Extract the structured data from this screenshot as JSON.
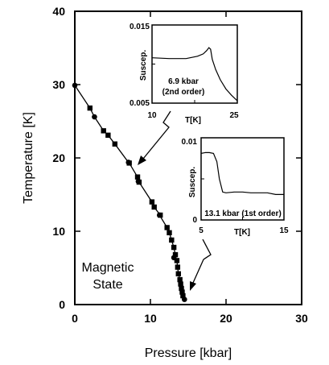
{
  "chart_data": [
    {
      "type": "scatter",
      "title": "",
      "xlabel": "Pressure [kbar]",
      "ylabel": "Temperature [K]",
      "xlim": [
        0,
        30
      ],
      "ylim": [
        0,
        40
      ],
      "x_ticks": [
        "0",
        "10",
        "20",
        "30"
      ],
      "y_ticks": [
        "0",
        "10",
        "20",
        "30",
        "40"
      ],
      "grid": false,
      "annotations": [
        "Magnetic",
        "State"
      ],
      "series": [
        {
          "marker": "square",
          "x": [
            2.0,
            3.8,
            4.4,
            5.3,
            7.2,
            8.3,
            8.5,
            10.2,
            10.5,
            11.3,
            12.2,
            12.5,
            12.8,
            13.1,
            13.3,
            13.5,
            13.6,
            13.7,
            13.9,
            14.0,
            14.1,
            14.2,
            14.3
          ],
          "y": [
            26.8,
            23.7,
            23.1,
            21.9,
            19.3,
            17.4,
            16.7,
            14.0,
            13.3,
            12.2,
            10.5,
            9.8,
            8.8,
            7.8,
            6.8,
            6.0,
            5.1,
            4.2,
            3.4,
            2.8,
            2.2,
            1.7,
            1.2
          ]
        },
        {
          "marker": "circle",
          "x": [
            0.0,
            2.6,
            7.1,
            8.4,
            11.2,
            13.1,
            14.5
          ],
          "y": [
            29.9,
            25.6,
            19.4,
            16.8,
            12.2,
            6.4,
            0.7
          ]
        }
      ]
    },
    {
      "type": "line",
      "title": "",
      "ylabel": "Suscep.",
      "xlabel": "T[K]",
      "xlim": [
        10,
        25
      ],
      "ylim": [
        0.005,
        0.015
      ],
      "x_ticks": [
        "10",
        "25"
      ],
      "y_ticks": [
        "0.005",
        "0.015"
      ],
      "annotation": [
        "6.9 kbar",
        "(2nd order)"
      ],
      "x": [
        10.0,
        13.0,
        16.0,
        18.0,
        19.0,
        19.6,
        20.0,
        20.3,
        20.6,
        21.2,
        22.0,
        23.0,
        24.0,
        25.0
      ],
      "y": [
        0.0108,
        0.0107,
        0.0107,
        0.011,
        0.0113,
        0.0117,
        0.0121,
        0.0119,
        0.0106,
        0.0093,
        0.008,
        0.0068,
        0.006,
        0.0053
      ]
    },
    {
      "type": "line",
      "title": "",
      "ylabel": "Suscep.",
      "xlabel": "T[K]",
      "xlim": [
        5,
        15
      ],
      "ylim": [
        0,
        0.01
      ],
      "x_ticks": [
        "5",
        "15"
      ],
      "y_ticks": [
        "0",
        "0.01"
      ],
      "annotation": [
        "13.1 kbar (1st order)"
      ],
      "x": [
        5.0,
        5.5,
        6.0,
        6.5,
        6.9,
        7.2,
        7.6,
        8.0,
        9.0,
        10.0,
        11.0,
        12.0,
        13.0,
        14.0,
        15.0
      ],
      "y": [
        0.0081,
        0.0082,
        0.0082,
        0.0081,
        0.0071,
        0.005,
        0.0034,
        0.0033,
        0.0034,
        0.0034,
        0.0033,
        0.0033,
        0.0033,
        0.0031,
        0.0031
      ]
    }
  ]
}
